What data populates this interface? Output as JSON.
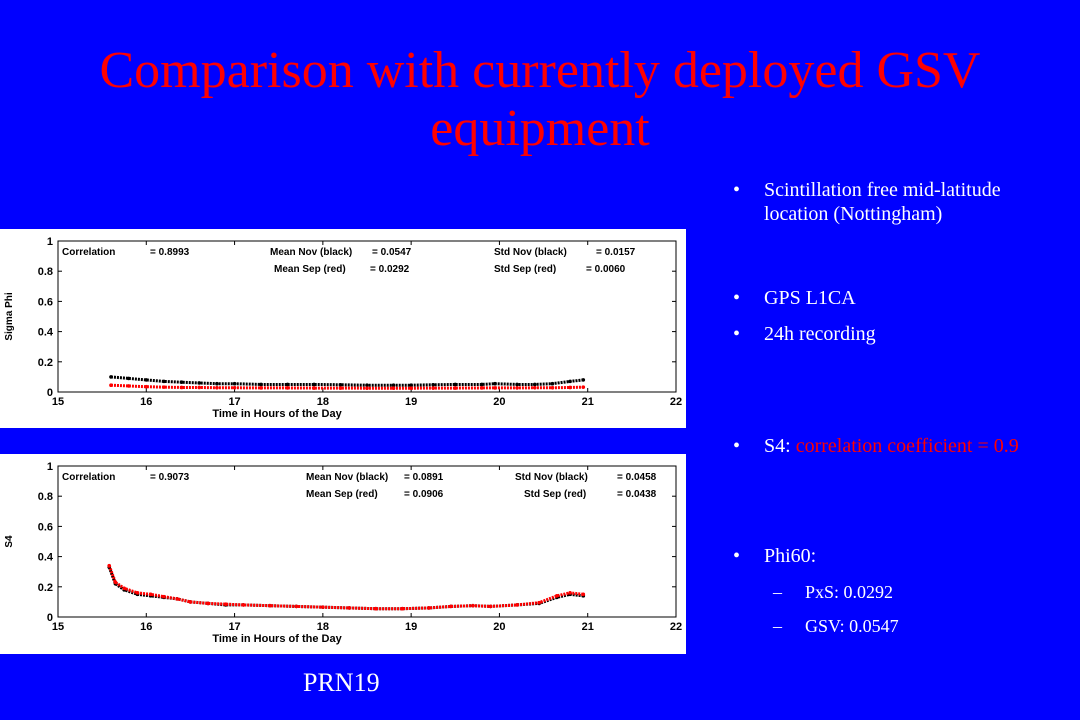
{
  "slide": {
    "title": "Comparison with currently deployed GSV equipment",
    "caption": "PRN19",
    "bullets": [
      {
        "text": "Scintillation free mid-latitude location (Nottingham)"
      },
      {
        "text": "GPS L1CA"
      },
      {
        "text": "24h recording"
      },
      {
        "prefix": "S4: ",
        "highlight": "correlation coefficient = 0.9"
      },
      {
        "text": "Phi60:"
      }
    ],
    "sub_bullets": [
      {
        "dash": "–",
        "text": "PxS: 0.0292"
      },
      {
        "dash": "–",
        "text": "GSV: 0.0547"
      }
    ],
    "colors": {
      "background": "#0000ff",
      "title": "#ff0000",
      "text": "#ffffff",
      "highlight": "#ff0000"
    }
  },
  "chart_data": [
    {
      "type": "scatter",
      "xlabel": "Time in Hours of the Day",
      "ylabel": "Sigma Phi",
      "xlim": [
        15,
        22
      ],
      "ylim": [
        0,
        1
      ],
      "xticks": [
        "15",
        "16",
        "17",
        "18",
        "19",
        "20",
        "21",
        "22"
      ],
      "yticks": [
        "0",
        "0.2",
        "0.4",
        "0.6",
        "0.8",
        "1"
      ],
      "stats": [
        {
          "label": "Correlation",
          "value": "= 0.8993"
        },
        {
          "label": "Mean Nov (black)",
          "value": "= 0.0547"
        },
        {
          "label": "Mean Sep (red)",
          "value": "= 0.0292"
        },
        {
          "label": "Std Nov (black)",
          "value": "= 0.0157"
        },
        {
          "label": "Std Sep (red)",
          "value": "= 0.0060"
        }
      ],
      "series": [
        {
          "color": "#000000",
          "x": [
            15.6,
            15.8,
            16.0,
            16.2,
            16.4,
            16.6,
            16.8,
            17.0,
            17.3,
            17.6,
            17.9,
            18.2,
            18.5,
            18.8,
            19.0,
            19.25,
            19.5,
            19.8,
            19.95,
            20.2,
            20.4,
            20.6,
            20.8,
            20.95
          ],
          "y": [
            0.1,
            0.09,
            0.08,
            0.07,
            0.065,
            0.06,
            0.055,
            0.055,
            0.05,
            0.05,
            0.05,
            0.048,
            0.045,
            0.045,
            0.045,
            0.048,
            0.05,
            0.05,
            0.055,
            0.05,
            0.05,
            0.055,
            0.07,
            0.08
          ]
        },
        {
          "color": "#ff0000",
          "x": [
            15.6,
            15.8,
            16.0,
            16.2,
            16.4,
            16.6,
            16.8,
            17.0,
            17.3,
            17.6,
            17.9,
            18.2,
            18.5,
            18.8,
            19.0,
            19.25,
            19.5,
            19.8,
            19.95,
            20.2,
            20.4,
            20.6,
            20.8,
            20.95
          ],
          "y": [
            0.045,
            0.04,
            0.035,
            0.032,
            0.03,
            0.03,
            0.028,
            0.028,
            0.027,
            0.027,
            0.026,
            0.026,
            0.025,
            0.025,
            0.025,
            0.026,
            0.026,
            0.027,
            0.027,
            0.027,
            0.028,
            0.028,
            0.03,
            0.032
          ]
        }
      ]
    },
    {
      "type": "scatter",
      "xlabel": "Time in Hours of the Day",
      "ylabel": "S4",
      "xlim": [
        15,
        22
      ],
      "ylim": [
        0,
        1
      ],
      "xticks": [
        "15",
        "16",
        "17",
        "18",
        "19",
        "20",
        "21",
        "22"
      ],
      "yticks": [
        "0",
        "0.2",
        "0.4",
        "0.6",
        "0.8",
        "1"
      ],
      "stats": [
        {
          "label": "Correlation",
          "value": "= 0.9073"
        },
        {
          "label": "Mean Nov (black)",
          "value": "= 0.0891"
        },
        {
          "label": "Mean Sep (red)",
          "value": "= 0.0906"
        },
        {
          "label": "Std Nov (black)",
          "value": "= 0.0458"
        },
        {
          "label": "Std Sep (red)",
          "value": "= 0.0438"
        }
      ],
      "series": [
        {
          "color": "#000000",
          "x": [
            15.58,
            15.65,
            15.75,
            15.9,
            16.05,
            16.2,
            16.35,
            16.5,
            16.7,
            16.9,
            17.1,
            17.4,
            17.7,
            18.0,
            18.3,
            18.6,
            18.9,
            19.2,
            19.45,
            19.7,
            19.9,
            20.2,
            20.45,
            20.65,
            20.8,
            20.95
          ],
          "y": [
            0.33,
            0.22,
            0.18,
            0.15,
            0.14,
            0.13,
            0.12,
            0.1,
            0.09,
            0.08,
            0.08,
            0.075,
            0.07,
            0.065,
            0.06,
            0.055,
            0.055,
            0.06,
            0.07,
            0.075,
            0.07,
            0.08,
            0.09,
            0.13,
            0.15,
            0.14
          ]
        },
        {
          "color": "#ff0000",
          "x": [
            15.58,
            15.65,
            15.75,
            15.9,
            16.05,
            16.2,
            16.35,
            16.5,
            16.7,
            16.9,
            17.1,
            17.4,
            17.7,
            18.0,
            18.3,
            18.6,
            18.9,
            19.2,
            19.45,
            19.7,
            19.9,
            20.2,
            20.45,
            20.65,
            20.8,
            20.95
          ],
          "y": [
            0.34,
            0.23,
            0.19,
            0.16,
            0.15,
            0.135,
            0.12,
            0.1,
            0.09,
            0.085,
            0.08,
            0.075,
            0.07,
            0.065,
            0.06,
            0.055,
            0.055,
            0.06,
            0.07,
            0.075,
            0.07,
            0.08,
            0.095,
            0.14,
            0.16,
            0.15
          ]
        }
      ]
    }
  ]
}
